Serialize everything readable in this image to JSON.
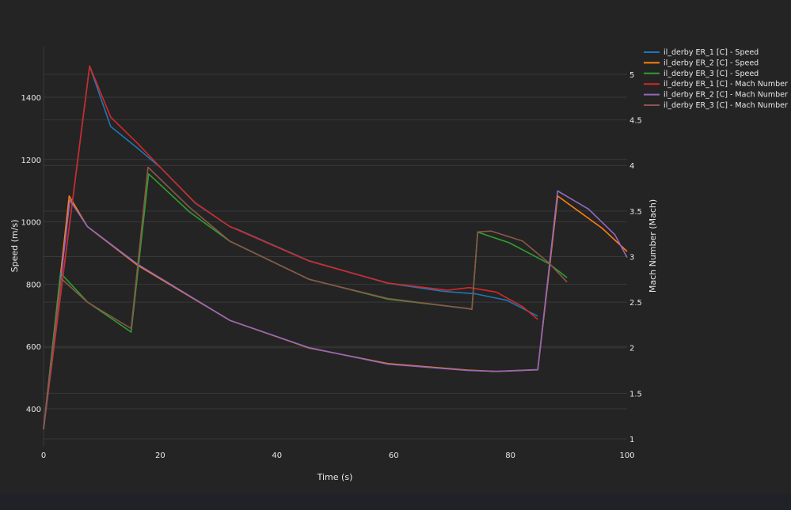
{
  "chart_data": {
    "type": "line",
    "title": "",
    "xlabel": "Time (s)",
    "ylabel": "Speed (m/s)",
    "y2label": "Mach Number (Mach)",
    "xlim": [
      0,
      100
    ],
    "ylim": [
      278,
      1565
    ],
    "y2lim": [
      0.913,
      5.312
    ],
    "xticks": [
      "0",
      "20",
      "40",
      "60",
      "80",
      "100"
    ],
    "xtick_values": [
      0,
      20,
      40,
      60,
      80,
      100
    ],
    "yticks": [
      "400",
      "600",
      "800",
      "1000",
      "1200",
      "1400"
    ],
    "ytick_values": [
      400,
      600,
      800,
      1000,
      1200,
      1400
    ],
    "y2ticks": [
      "1",
      "1.5",
      "2",
      "2.5",
      "3",
      "3.5",
      "4",
      "4.5",
      "5"
    ],
    "y2tick_values": [
      1,
      1.5,
      2,
      2.5,
      3,
      3.5,
      4,
      4.5,
      5
    ],
    "grid": true,
    "legend_position": "top-right-outside",
    "series": [
      {
        "name": "il_derby ER_1 [C] - Speed",
        "axis": "y",
        "color": "#1f77b4",
        "points": [
          [
            0,
            334
          ],
          [
            7.9,
            1500
          ],
          [
            11.5,
            1306
          ],
          [
            16,
            1238
          ],
          [
            20,
            1175
          ],
          [
            26,
            1060
          ],
          [
            31.9,
            985
          ],
          [
            33.2,
            976
          ],
          [
            45.5,
            875
          ],
          [
            59,
            803
          ],
          [
            68.5,
            777
          ],
          [
            74,
            769
          ],
          [
            79.4,
            748
          ],
          [
            84.7,
            697
          ]
        ]
      },
      {
        "name": "il_derby ER_2 [C] - Speed",
        "axis": "y",
        "color": "#ff7f0e",
        "points": [
          [
            0,
            334
          ],
          [
            4.4,
            1083
          ],
          [
            7.5,
            985
          ],
          [
            16,
            862
          ],
          [
            31.9,
            684
          ],
          [
            45.5,
            595
          ],
          [
            59,
            545
          ],
          [
            72.6,
            524
          ],
          [
            77.6,
            520
          ],
          [
            84.7,
            525
          ],
          [
            88.1,
            1083
          ],
          [
            95.7,
            980
          ],
          [
            100,
            905
          ]
        ]
      },
      {
        "name": "il_derby ER_3 [C] - Speed",
        "axis": "y",
        "color": "#2ca02c",
        "points": [
          [
            0,
            334
          ],
          [
            2.9,
            836
          ],
          [
            7.5,
            743
          ],
          [
            15,
            646
          ],
          [
            18,
            1154
          ],
          [
            25,
            1032
          ],
          [
            31.9,
            938
          ],
          [
            45.5,
            816
          ],
          [
            59,
            752
          ],
          [
            72.6,
            722
          ],
          [
            73.4,
            720
          ],
          [
            74.4,
            967
          ],
          [
            79.8,
            933
          ],
          [
            86.6,
            866
          ],
          [
            89.7,
            821
          ]
        ]
      },
      {
        "name": "il_derby ER_1 [C] - Mach Number",
        "axis": "y2",
        "color": "#d62728",
        "points": [
          [
            0,
            1.11
          ],
          [
            7.9,
            5.09
          ],
          [
            11.5,
            4.53
          ],
          [
            16,
            4.25
          ],
          [
            20,
            3.98
          ],
          [
            26,
            3.59
          ],
          [
            31.9,
            3.33
          ],
          [
            45.5,
            2.95
          ],
          [
            59,
            2.71
          ],
          [
            69.2,
            2.63
          ],
          [
            73,
            2.66
          ],
          [
            77.6,
            2.61
          ],
          [
            82.1,
            2.45
          ],
          [
            84.7,
            2.31
          ]
        ]
      },
      {
        "name": "il_derby ER_2 [C] - Mach Number",
        "axis": "y2",
        "color": "#9467bd",
        "points": [
          [
            0,
            1.11
          ],
          [
            4.5,
            3.62
          ],
          [
            7.5,
            3.33
          ],
          [
            16,
            2.92
          ],
          [
            31.9,
            2.3
          ],
          [
            45.5,
            2.0
          ],
          [
            59,
            1.82
          ],
          [
            72.6,
            1.75
          ],
          [
            77.6,
            1.74
          ],
          [
            84.7,
            1.76
          ],
          [
            88.1,
            3.72
          ],
          [
            93.4,
            3.52
          ],
          [
            97.9,
            3.24
          ],
          [
            100,
            2.99
          ]
        ]
      },
      {
        "name": "il_derby ER_3 [C] - Mach Number",
        "axis": "y2",
        "color": "#8c564b",
        "points": [
          [
            0,
            1.11
          ],
          [
            3.0,
            2.76
          ],
          [
            7.5,
            2.5
          ],
          [
            15,
            2.21
          ],
          [
            17.9,
            3.98
          ],
          [
            25,
            3.54
          ],
          [
            31.9,
            3.17
          ],
          [
            45.5,
            2.75
          ],
          [
            59,
            2.54
          ],
          [
            72.6,
            2.43
          ],
          [
            73.4,
            2.42
          ],
          [
            74.4,
            3.27
          ],
          [
            76.7,
            3.28
          ],
          [
            82.1,
            3.17
          ],
          [
            86.6,
            2.93
          ],
          [
            89.7,
            2.72
          ]
        ]
      }
    ]
  }
}
